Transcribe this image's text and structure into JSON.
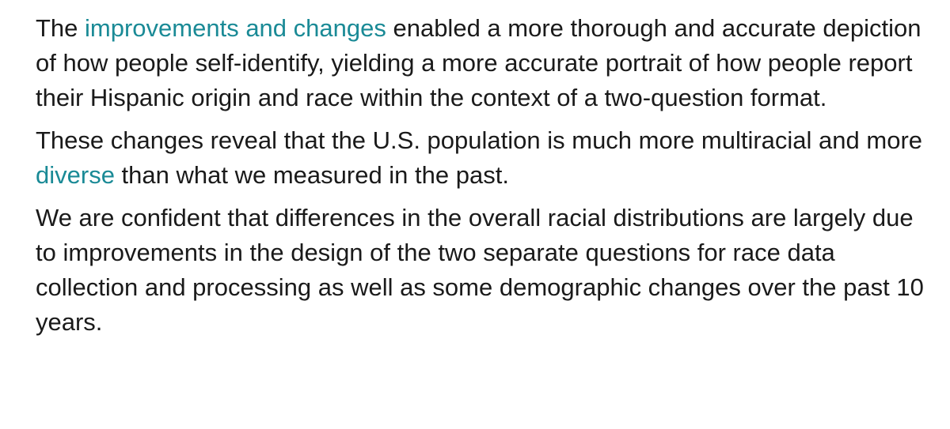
{
  "article": {
    "paragraph1": {
      "before_link": "The ",
      "link_text": "improvements and changes",
      "after_link": " enabled a more thorough and accurate depiction of how people self-identify, yielding a more accurate portrait of how people report their Hispanic origin and race within the context of a two-question format."
    },
    "paragraph2": {
      "before_link": "These changes reveal that the U.S. population is much more multiracial and more ",
      "link_text": "diverse",
      "after_link": " than what we measured in the past."
    },
    "paragraph3": {
      "text": "We are confident that differences in the overall racial distributions are largely due to improvements in the design of the two separate questions for race data collection and processing as well as some demographic changes over the past 10 years."
    },
    "colors": {
      "text": "#1a1a1a",
      "link": "#1a8a96"
    }
  }
}
